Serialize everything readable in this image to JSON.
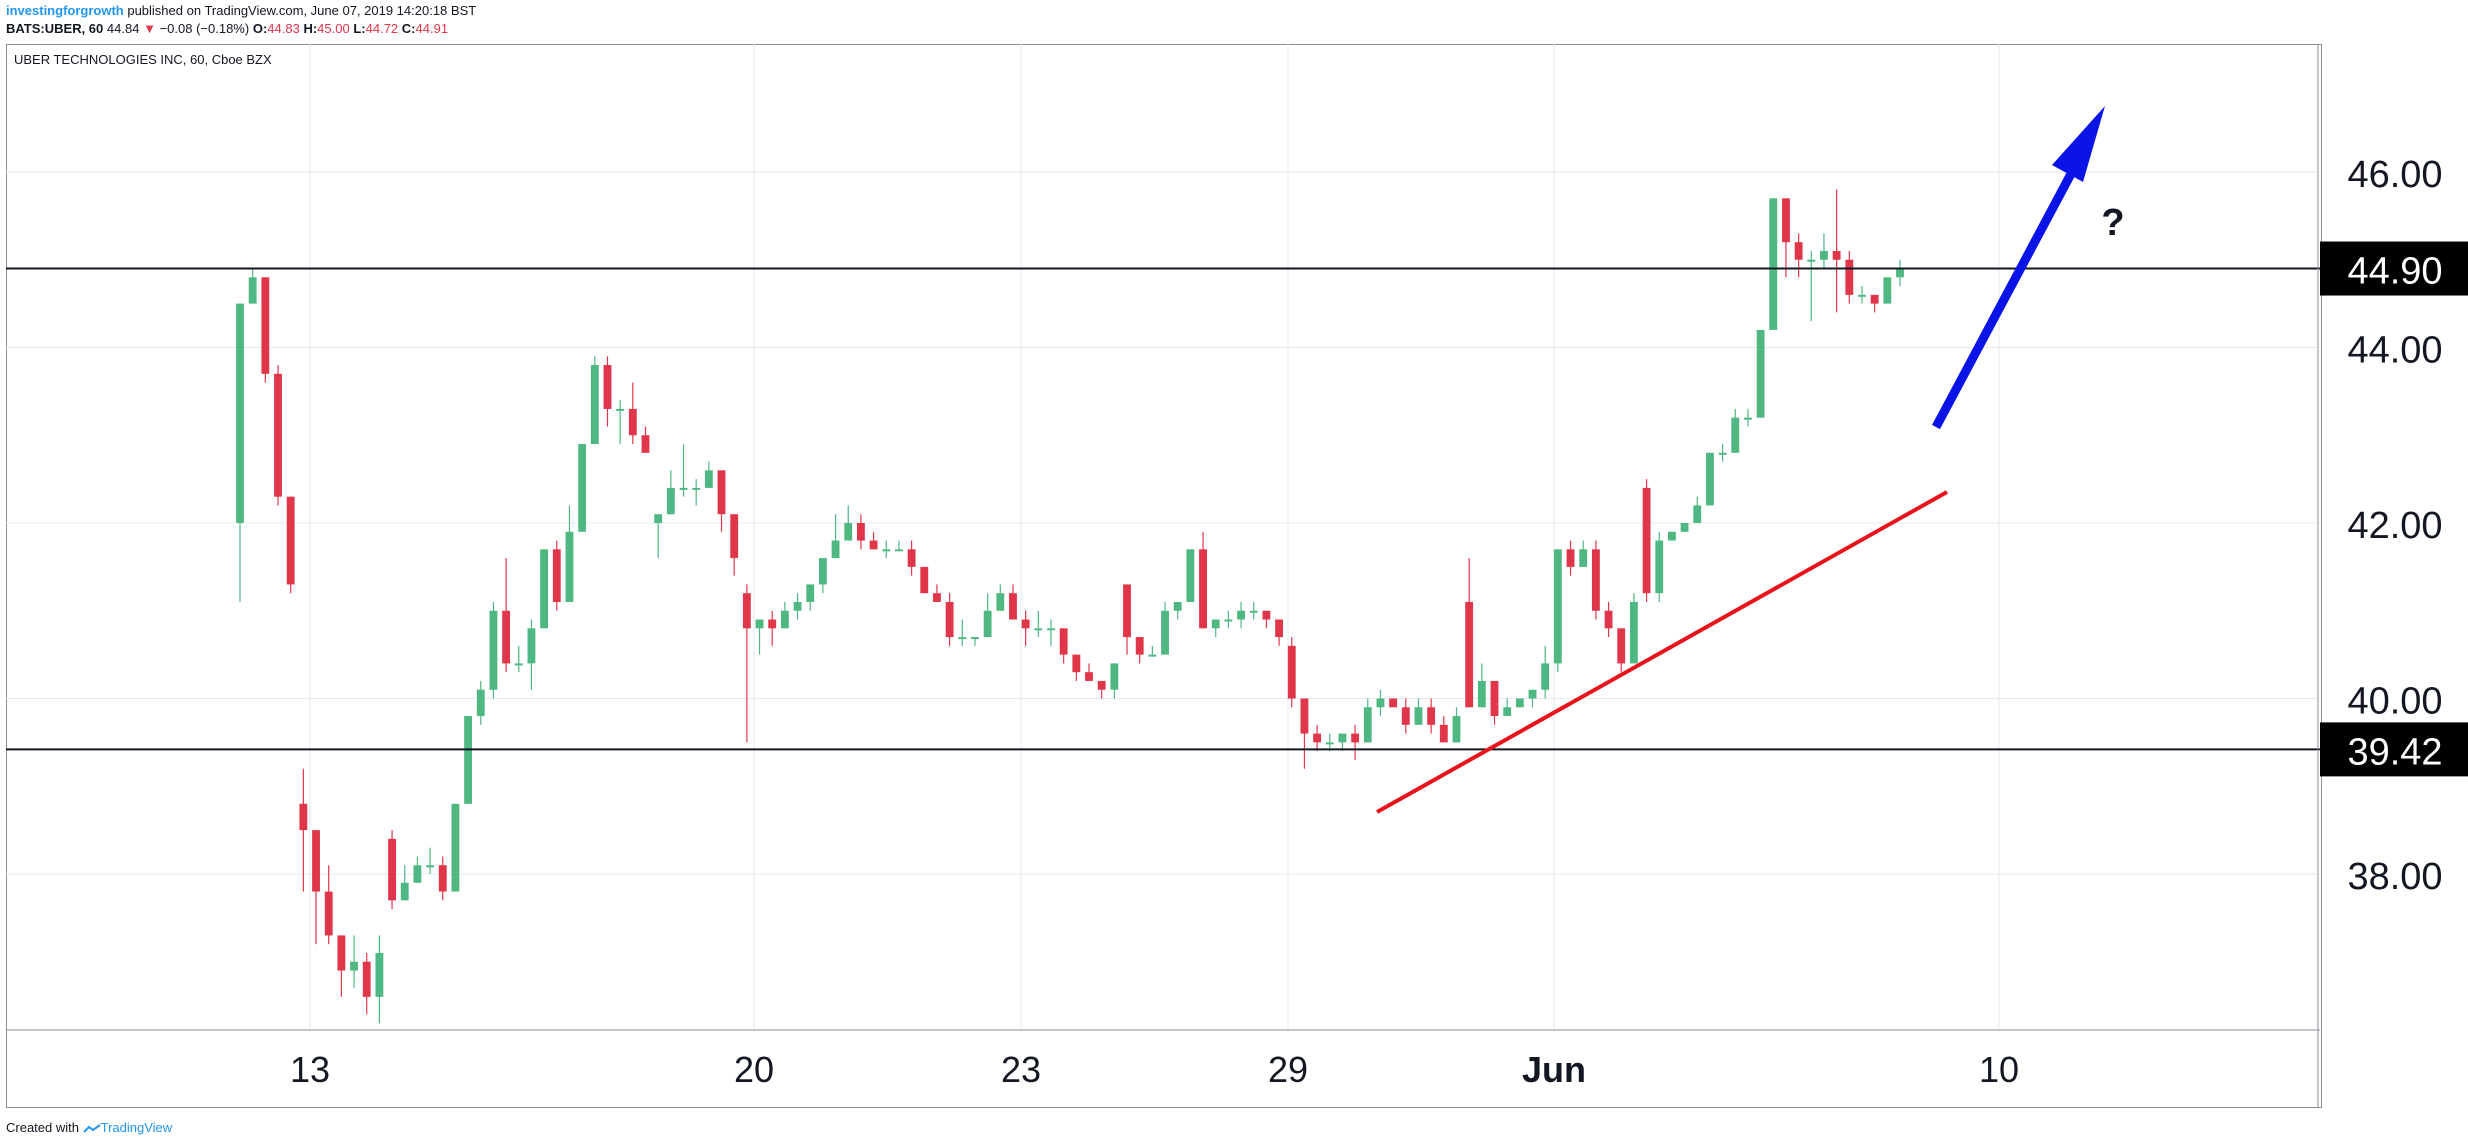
{
  "header": {
    "author": "investingforgrowth",
    "published_text": "published on TradingView.com, June 07, 2019 14:20:18 BST",
    "symbol": "BATS:UBER, 60",
    "last": "44.84",
    "change": "−0.08 (−0.18%)",
    "o_label": "O:",
    "o_value": "44.83",
    "h_label": "H:",
    "h_value": "45.00",
    "l_label": "L:",
    "l_value": "44.72",
    "c_label": "C:",
    "c_value": "44.91"
  },
  "panel_title": "UBER TECHNOLOGIES INC, 60, Cboe BZX",
  "footer": {
    "created_with": "Created with",
    "brand": "TradingView"
  },
  "colors": {
    "up": "#4fb882",
    "down": "#e0364a",
    "grid": "#e6e8ec",
    "trendline": "#e8141c",
    "projection_arrow": "#0a14e6",
    "level_line": "#131722"
  },
  "chart_data": {
    "type": "candlestick",
    "ylim": [
      36.1,
      47.3
    ],
    "y_ticks": [
      "46.00",
      "44.00",
      "42.00",
      "40.00",
      "38.00"
    ],
    "x_tick_labels": [
      "13",
      "20",
      "23",
      "29",
      "Jun",
      "10"
    ],
    "price_labels": [
      "44.90",
      "39.42"
    ],
    "horizontal_levels": [
      44.9,
      39.42
    ],
    "annotation_text": "?",
    "candles": [
      [
        42.0,
        44.5,
        44.5,
        41.1
      ],
      [
        44.5,
        44.8,
        44.9,
        44.5
      ],
      [
        44.8,
        43.7,
        44.8,
        43.6
      ],
      [
        43.7,
        42.3,
        43.8,
        42.2
      ],
      [
        42.3,
        41.3,
        42.3,
        41.2
      ],
      [
        38.8,
        38.5,
        39.2,
        37.8
      ],
      [
        38.5,
        37.8,
        38.5,
        37.2
      ],
      [
        37.8,
        37.3,
        38.1,
        37.2
      ],
      [
        37.3,
        36.9,
        37.3,
        36.6
      ],
      [
        36.9,
        37.0,
        37.3,
        36.7
      ],
      [
        37.0,
        36.6,
        37.1,
        36.4
      ],
      [
        36.6,
        37.1,
        37.3,
        36.3
      ],
      [
        38.4,
        37.7,
        38.5,
        37.6
      ],
      [
        37.7,
        37.9,
        38.1,
        37.7
      ],
      [
        37.9,
        38.1,
        38.2,
        37.9
      ],
      [
        38.1,
        38.1,
        38.3,
        38.0
      ],
      [
        38.1,
        37.8,
        38.2,
        37.7
      ],
      [
        37.8,
        38.8,
        38.8,
        37.8
      ],
      [
        38.8,
        39.8,
        39.8,
        38.8
      ],
      [
        39.8,
        40.1,
        40.2,
        39.7
      ],
      [
        40.1,
        41.0,
        41.1,
        40.0
      ],
      [
        41.0,
        40.4,
        41.6,
        40.3
      ],
      [
        40.4,
        40.4,
        40.6,
        40.3
      ],
      [
        40.4,
        40.8,
        40.9,
        40.1
      ],
      [
        40.8,
        41.7,
        41.7,
        40.8
      ],
      [
        41.7,
        41.1,
        41.8,
        41.0
      ],
      [
        41.1,
        41.9,
        42.2,
        41.1
      ],
      [
        41.9,
        42.9,
        42.9,
        41.9
      ],
      [
        42.9,
        43.8,
        43.9,
        42.9
      ],
      [
        43.8,
        43.3,
        43.9,
        43.1
      ],
      [
        43.3,
        43.3,
        43.4,
        42.9
      ],
      [
        43.3,
        43.0,
        43.6,
        42.9
      ],
      [
        43.0,
        42.8,
        43.1,
        42.8
      ],
      [
        42.0,
        42.1,
        42.1,
        41.6
      ],
      [
        42.1,
        42.4,
        42.6,
        42.1
      ],
      [
        42.4,
        42.4,
        42.9,
        42.3
      ],
      [
        42.4,
        42.4,
        42.5,
        42.2
      ],
      [
        42.4,
        42.6,
        42.7,
        42.4
      ],
      [
        42.6,
        42.1,
        42.6,
        41.9
      ],
      [
        42.1,
        41.6,
        42.1,
        41.4
      ],
      [
        41.2,
        40.8,
        41.3,
        39.5
      ],
      [
        40.8,
        40.9,
        40.9,
        40.5
      ],
      [
        40.9,
        40.8,
        41.0,
        40.6
      ],
      [
        40.8,
        41.0,
        41.1,
        40.8
      ],
      [
        41.0,
        41.1,
        41.2,
        40.9
      ],
      [
        41.1,
        41.3,
        41.3,
        41.0
      ],
      [
        41.3,
        41.6,
        41.6,
        41.2
      ],
      [
        41.6,
        41.8,
        42.1,
        41.6
      ],
      [
        41.8,
        42.0,
        42.2,
        41.8
      ],
      [
        42.0,
        41.8,
        42.1,
        41.7
      ],
      [
        41.8,
        41.7,
        41.9,
        41.7
      ],
      [
        41.7,
        41.7,
        41.8,
        41.6
      ],
      [
        41.7,
        41.7,
        41.8,
        41.7
      ],
      [
        41.7,
        41.5,
        41.8,
        41.4
      ],
      [
        41.5,
        41.2,
        41.5,
        41.2
      ],
      [
        41.2,
        41.1,
        41.3,
        41.1
      ],
      [
        41.1,
        40.7,
        41.2,
        40.6
      ],
      [
        40.7,
        40.7,
        40.9,
        40.6
      ],
      [
        40.7,
        40.7,
        40.7,
        40.6
      ],
      [
        40.7,
        41.0,
        41.2,
        40.7
      ],
      [
        41.0,
        41.2,
        41.3,
        41.0
      ],
      [
        41.2,
        40.9,
        41.3,
        40.9
      ],
      [
        40.9,
        40.8,
        41.0,
        40.6
      ],
      [
        40.8,
        40.8,
        41.0,
        40.7
      ],
      [
        40.8,
        40.8,
        40.9,
        40.6
      ],
      [
        40.8,
        40.5,
        40.8,
        40.4
      ],
      [
        40.5,
        40.3,
        40.5,
        40.2
      ],
      [
        40.3,
        40.2,
        40.4,
        40.2
      ],
      [
        40.2,
        40.1,
        40.2,
        40.0
      ],
      [
        40.1,
        40.4,
        40.4,
        40.0
      ],
      [
        41.3,
        40.7,
        41.3,
        40.5
      ],
      [
        40.7,
        40.5,
        40.7,
        40.4
      ],
      [
        40.5,
        40.5,
        40.6,
        40.5
      ],
      [
        40.5,
        41.0,
        41.1,
        40.5
      ],
      [
        41.0,
        41.1,
        41.1,
        40.9
      ],
      [
        41.1,
        41.7,
        41.7,
        41.1
      ],
      [
        41.7,
        40.8,
        41.9,
        40.8
      ],
      [
        40.8,
        40.9,
        40.9,
        40.7
      ],
      [
        40.9,
        40.9,
        41.0,
        40.8
      ],
      [
        40.9,
        41.0,
        41.1,
        40.8
      ],
      [
        41.0,
        41.0,
        41.1,
        40.9
      ],
      [
        41.0,
        40.9,
        41.0,
        40.8
      ],
      [
        40.9,
        40.7,
        40.9,
        40.6
      ],
      [
        40.6,
        40.0,
        40.7,
        39.9
      ],
      [
        40.0,
        39.6,
        40.0,
        39.2
      ],
      [
        39.6,
        39.5,
        39.7,
        39.4
      ],
      [
        39.5,
        39.5,
        39.6,
        39.4
      ],
      [
        39.5,
        39.6,
        39.6,
        39.4
      ],
      [
        39.6,
        39.5,
        39.7,
        39.3
      ],
      [
        39.5,
        39.9,
        40.0,
        39.5
      ],
      [
        39.9,
        40.0,
        40.1,
        39.8
      ],
      [
        40.0,
        39.9,
        40.0,
        39.9
      ],
      [
        39.9,
        39.7,
        40.0,
        39.6
      ],
      [
        39.7,
        39.9,
        40.0,
        39.7
      ],
      [
        39.9,
        39.7,
        40.0,
        39.6
      ],
      [
        39.7,
        39.5,
        39.8,
        39.5
      ],
      [
        39.5,
        39.8,
        39.9,
        39.5
      ],
      [
        41.1,
        39.9,
        41.6,
        39.9
      ],
      [
        39.9,
        40.2,
        40.4,
        39.9
      ],
      [
        40.2,
        39.8,
        40.2,
        39.7
      ],
      [
        39.8,
        39.9,
        40.0,
        39.8
      ],
      [
        39.9,
        40.0,
        40.0,
        39.9
      ],
      [
        40.0,
        40.1,
        40.1,
        39.9
      ],
      [
        40.1,
        40.4,
        40.6,
        40.0
      ],
      [
        40.4,
        41.7,
        41.7,
        40.3
      ],
      [
        41.7,
        41.5,
        41.8,
        41.4
      ],
      [
        41.5,
        41.7,
        41.8,
        41.5
      ],
      [
        41.7,
        41.0,
        41.8,
        40.9
      ],
      [
        41.0,
        40.8,
        41.1,
        40.7
      ],
      [
        40.8,
        40.4,
        40.8,
        40.3
      ],
      [
        40.4,
        41.1,
        41.2,
        40.4
      ],
      [
        42.4,
        41.2,
        42.5,
        41.1
      ],
      [
        41.2,
        41.8,
        41.9,
        41.1
      ],
      [
        41.8,
        41.9,
        41.9,
        41.8
      ],
      [
        41.9,
        42.0,
        42.0,
        41.9
      ],
      [
        42.0,
        42.2,
        42.3,
        42.0
      ],
      [
        42.2,
        42.8,
        42.8,
        42.2
      ],
      [
        42.8,
        42.8,
        42.9,
        42.7
      ],
      [
        42.8,
        43.2,
        43.3,
        42.8
      ],
      [
        43.2,
        43.2,
        43.3,
        43.1
      ],
      [
        43.2,
        44.2,
        44.2,
        43.2
      ],
      [
        44.2,
        45.7,
        45.7,
        44.2
      ],
      [
        45.7,
        45.2,
        45.7,
        44.8
      ],
      [
        45.2,
        45.0,
        45.3,
        44.8
      ],
      [
        45.0,
        45.0,
        45.1,
        44.3
      ],
      [
        45.0,
        45.1,
        45.3,
        44.9
      ],
      [
        45.1,
        45.0,
        45.8,
        44.4
      ],
      [
        45.0,
        44.6,
        45.1,
        44.5
      ],
      [
        44.6,
        44.6,
        44.7,
        44.5
      ],
      [
        44.6,
        44.5,
        44.6,
        44.4
      ],
      [
        44.5,
        44.8,
        44.8,
        44.5
      ],
      [
        44.8,
        44.9,
        45.0,
        44.7
      ]
    ]
  }
}
